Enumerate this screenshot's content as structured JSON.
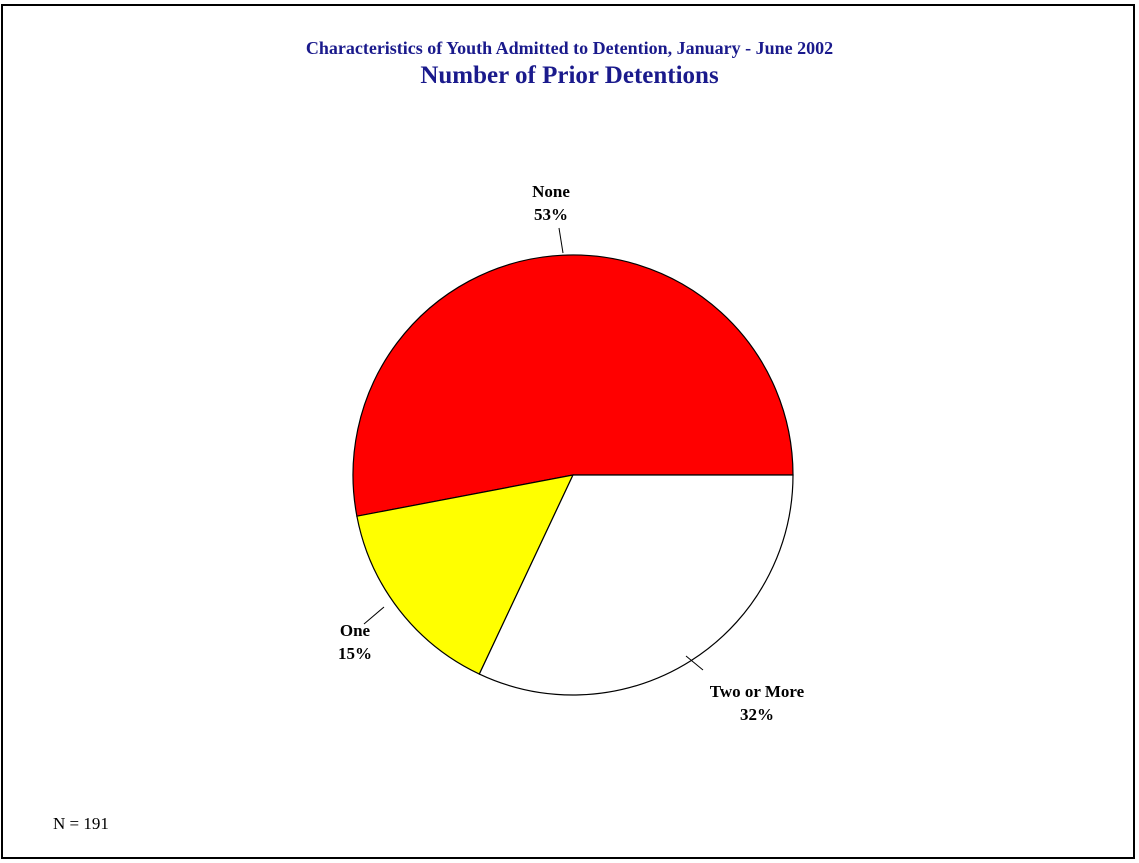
{
  "chart_data": {
    "type": "pie",
    "title": "Characteristics of Youth Admitted to Detention, January - June 2002",
    "subtitle": "Number of Prior Detentions",
    "categories": [
      "None",
      "One",
      "Two or More"
    ],
    "values": [
      53,
      15,
      32
    ],
    "value_labels": [
      "53%",
      "15%",
      "32%"
    ],
    "colors": [
      "#ff0000",
      "#ffff00",
      "#ffffff"
    ],
    "legend": "none",
    "note": "N = 191"
  }
}
